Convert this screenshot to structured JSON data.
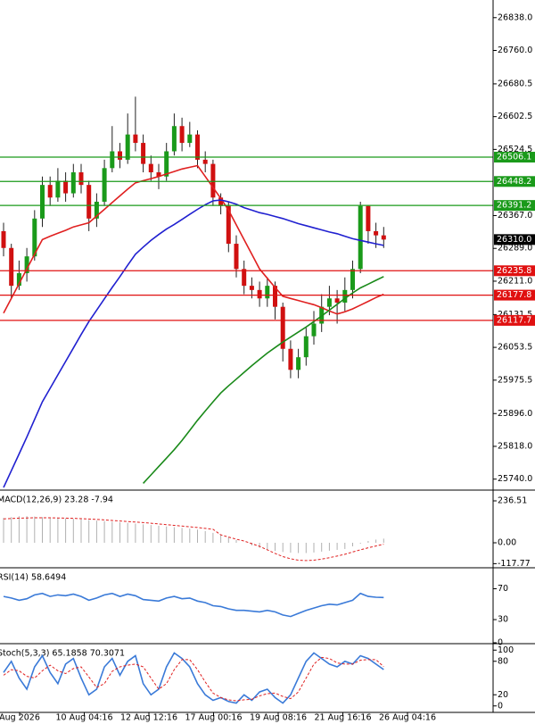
{
  "chart_data": [
    {
      "type": "candlestick",
      "ylim": [
        25716,
        26880
      ],
      "yticks": [
        {
          "value": 26838,
          "label": "26838.0"
        },
        {
          "value": 26760,
          "label": "26760.0"
        },
        26680.5,
        26602.5,
        26524.5,
        {
          "value": 26367,
          "label": "26367.0"
        },
        {
          "value": 26289,
          "label": "26289.0"
        },
        {
          "value": 26211,
          "label": "26211.0"
        },
        26131.5,
        26053.5,
        25975.5,
        {
          "value": 25896,
          "label": "25896.0"
        },
        {
          "value": 25818,
          "label": "25818.0"
        },
        {
          "value": 25740,
          "label": "25740.0"
        }
      ],
      "up_color": "#1a9a1a",
      "down_color": "#d01010",
      "open": [
        26330,
        26290,
        26200,
        26230,
        26270,
        26360,
        26440,
        26410,
        26450,
        26420,
        26470,
        26440,
        26360,
        26400,
        26480,
        26520,
        26500,
        26560,
        26540,
        26490,
        26470,
        26460,
        26520,
        26580,
        26540,
        26560,
        26500,
        26490,
        26410,
        26390,
        26300,
        26240,
        26200,
        26190,
        26170,
        26200,
        26150,
        26050,
        26000,
        26030,
        26080,
        26110,
        26150,
        26170,
        26160,
        26190,
        26240,
        26390,
        26330,
        26320
      ],
      "high": [
        26350,
        26300,
        26260,
        26290,
        26380,
        26460,
        26460,
        26480,
        26470,
        26490,
        26490,
        26450,
        26420,
        26500,
        26580,
        26540,
        26610,
        26650,
        26560,
        26510,
        26490,
        26540,
        26610,
        26600,
        26590,
        26570,
        26520,
        26500,
        26420,
        26400,
        26320,
        26260,
        26220,
        26210,
        26220,
        26210,
        26160,
        26070,
        26050,
        26100,
        26140,
        26180,
        26200,
        26190,
        26220,
        26260,
        26400,
        26390,
        26350,
        26340
      ],
      "low": [
        26270,
        26170,
        26190,
        26210,
        26260,
        26340,
        26390,
        26400,
        26400,
        26410,
        26420,
        26330,
        26340,
        26390,
        26470,
        26480,
        26490,
        26520,
        26470,
        26450,
        26430,
        26450,
        26510,
        26520,
        26530,
        26480,
        26470,
        26390,
        26370,
        26280,
        26220,
        26180,
        26170,
        26150,
        26150,
        26120,
        26020,
        25980,
        25980,
        26010,
        26060,
        26090,
        26130,
        26110,
        26140,
        26170,
        26230,
        26300,
        26290,
        26290
      ],
      "close": [
        26290,
        26200,
        26230,
        26270,
        26360,
        26440,
        26410,
        26450,
        26420,
        26470,
        26440,
        26360,
        26400,
        26480,
        26520,
        26500,
        26560,
        26540,
        26490,
        26470,
        26460,
        26520,
        26580,
        26540,
        26560,
        26500,
        26490,
        26410,
        26390,
        26300,
        26240,
        26200,
        26190,
        26170,
        26200,
        26150,
        26050,
        26000,
        26030,
        26080,
        26110,
        26150,
        26170,
        26160,
        26190,
        26240,
        26390,
        26330,
        26320,
        26310
      ],
      "series": [
        {
          "color": "#e02020",
          "values": [
            26135,
            26170,
            26205,
            26240,
            26275,
            26310,
            26318,
            26325,
            26332,
            26340,
            26345,
            26350,
            26366,
            26382,
            26398,
            26414,
            26430,
            26445,
            26450,
            26455,
            26460,
            26466,
            26472,
            26478,
            26482,
            26486,
            26460,
            26434,
            26408,
            26380,
            26345,
            26310,
            26275,
            26240,
            26218,
            26196,
            26175,
            26170,
            26165,
            26160,
            26155,
            26148,
            26140,
            26133,
            26138,
            26145,
            26154,
            26163,
            26172,
            26180
          ]
        },
        {
          "color": "#2020d0",
          "values": [
            25720,
            25760,
            25800,
            25840,
            25882,
            25924,
            25956,
            25988,
            26020,
            26052,
            26084,
            26115,
            26142,
            26169,
            26196,
            26222,
            26249,
            26275,
            26292,
            26308,
            26322,
            26335,
            26346,
            26358,
            26370,
            26382,
            26393,
            26402,
            26404,
            26400,
            26394,
            26386,
            26380,
            26374,
            26370,
            26365,
            26360,
            26354,
            26348,
            26343,
            26338,
            26333,
            26328,
            26324,
            26318,
            26312,
            26308,
            26304,
            26300,
            26296
          ]
        },
        {
          "color": "#1a8a1a",
          "values": [
            null,
            null,
            null,
            null,
            null,
            null,
            null,
            null,
            null,
            null,
            null,
            null,
            null,
            null,
            null,
            null,
            null,
            null,
            25730,
            25750,
            25770,
            25790,
            25810,
            25832,
            25856,
            25880,
            25902,
            25924,
            25945,
            25962,
            25978,
            25994,
            26010,
            26025,
            26040,
            26053,
            26066,
            26078,
            26090,
            26102,
            26115,
            26128,
            26142,
            26156,
            26170,
            26183,
            26195,
            26204,
            26213,
            26222
          ]
        }
      ],
      "levels": [
        {
          "value": 26506.1,
          "color": "#1a9a1a"
        },
        {
          "value": 26448.2,
          "color": "#1a9a1a"
        },
        {
          "value": 26391.2,
          "color": "#1a9a1a"
        },
        {
          "value": 26235.8,
          "color": "#e01010"
        },
        {
          "value": 26177.8,
          "color": "#e01010"
        },
        {
          "value": 26117.7,
          "color": "#e01010"
        }
      ],
      "last_price": {
        "value": 26310,
        "label": "26310.0"
      }
    },
    {
      "type": "macd",
      "title": "MACD(12,26,9) 23.28 -7.94",
      "ylim": [
        -136,
        292
      ],
      "yticks": [
        236.51,
        {
          "value": 0,
          "label": "0.00"
        },
        -117.77
      ],
      "histogram": {
        "color": "#b0b0b0",
        "values": [
          140,
          145,
          150,
          150,
          148,
          145,
          142,
          140,
          138,
          135,
          132,
          128,
          125,
          122,
          118,
          115,
          112,
          108,
          104,
          100,
          96,
          92,
          88,
          84,
          80,
          74,
          66,
          56,
          44,
          30,
          15,
          0,
          -15,
          -28,
          -38,
          -46,
          -52,
          -56,
          -58,
          -58,
          -55,
          -50,
          -45,
          -40,
          -35,
          -20,
          -5,
          10,
          18,
          23.28
        ]
      },
      "signal": {
        "color": "#e02020",
        "values": [
          135,
          137,
          139,
          140,
          141,
          141,
          141,
          140,
          139,
          138,
          136,
          134,
          132,
          129,
          126,
          123,
          120,
          117,
          114,
          110,
          106,
          102,
          98,
          94,
          90,
          86,
          81,
          76,
          45,
          32,
          20,
          10,
          -5,
          -20,
          -40,
          -60,
          -78,
          -90,
          -98,
          -100,
          -98,
          -92,
          -84,
          -75,
          -65,
          -52,
          -40,
          -28,
          -18,
          -7.94
        ]
      }
    },
    {
      "type": "line",
      "title": "RSI(14) 58.6494",
      "ylim": [
        0,
        96
      ],
      "yticks": [
        70,
        30,
        0
      ],
      "series": [
        {
          "color": "#3a7ad8",
          "values": [
            60,
            58,
            55,
            57,
            62,
            64,
            60,
            62,
            61,
            63,
            60,
            55,
            58,
            62,
            64,
            60,
            63,
            61,
            56,
            55,
            54,
            58,
            60,
            57,
            58,
            54,
            52,
            48,
            47,
            44,
            42,
            42,
            41,
            40,
            42,
            40,
            36,
            34,
            38,
            42,
            45,
            48,
            50,
            49,
            52,
            55,
            64,
            60,
            59,
            58.6494
          ]
        }
      ]
    },
    {
      "type": "line",
      "title": "Stoch(5,3,3) 65.1858 70.3071",
      "ylim": [
        -10,
        110
      ],
      "yticks": [
        100,
        80,
        20,
        0
      ],
      "series": [
        {
          "color": "#3a7ad8",
          "values": [
            60,
            80,
            50,
            30,
            70,
            90,
            60,
            40,
            75,
            85,
            50,
            20,
            30,
            70,
            85,
            55,
            80,
            90,
            40,
            20,
            30,
            70,
            95,
            85,
            70,
            40,
            20,
            10,
            15,
            8,
            5,
            20,
            10,
            25,
            30,
            15,
            5,
            20,
            50,
            80,
            95,
            85,
            75,
            70,
            80,
            75,
            90,
            85,
            75,
            65.1858
          ]
        },
        {
          "color": "#e02020",
          "dashed": true,
          "values": [
            55,
            65,
            63,
            53,
            50,
            63,
            73,
            63,
            58,
            67,
            70,
            52,
            33,
            40,
            62,
            70,
            73,
            75,
            70,
            50,
            30,
            40,
            65,
            83,
            83,
            65,
            43,
            23,
            15,
            11,
            9,
            11,
            12,
            18,
            22,
            23,
            17,
            13,
            25,
            50,
            75,
            87,
            85,
            77,
            75,
            75,
            82,
            83,
            83,
            70.3071
          ]
        }
      ]
    }
  ],
  "x_labels": [
    "Aug 2026",
    "10 Aug 04:16",
    "12 Aug 12:16",
    "17 Aug 00:16",
    "19 Aug 08:16",
    "21 Aug 16:16",
    "26 Aug 04:16"
  ]
}
